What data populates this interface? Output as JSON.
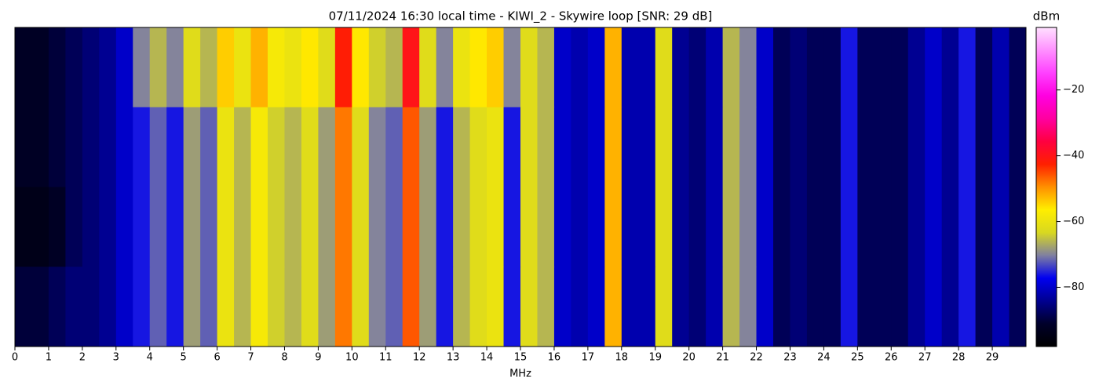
{
  "chart_data": {
    "type": "heatmap",
    "title": "07/11/2024 16:30 local time - KIWI_2 - Skywire loop [SNR: 29 dB]",
    "xlabel": "MHz",
    "xlim": [
      0,
      30
    ],
    "xticks": [
      0,
      1,
      2,
      3,
      4,
      5,
      6,
      7,
      8,
      9,
      10,
      11,
      12,
      13,
      14,
      15,
      16,
      17,
      18,
      19,
      20,
      21,
      22,
      23,
      24,
      25,
      26,
      27,
      28,
      29
    ],
    "colorbar_label": "dBm",
    "clim": [
      -98,
      -1
    ],
    "cticks": [
      {
        "value": -20,
        "label": "−20"
      },
      {
        "value": -40,
        "label": "−40"
      },
      {
        "value": -60,
        "label": "−60"
      },
      {
        "value": -80,
        "label": "−80"
      }
    ],
    "colormap": [
      "#000000",
      "#00002a",
      "#000090",
      "#0000f0",
      "#8080a0",
      "#d8d820",
      "#ffee00",
      "#ff9000",
      "#ff2000",
      "#ff0040",
      "#ff00a0",
      "#ff00e0",
      "#ff40ff",
      "#ff90ff",
      "#ffe0ff"
    ],
    "values": [
      [
        -92,
        -92,
        -90,
        -88,
        -86,
        -84,
        -80,
        -70,
        -66,
        -70,
        -62,
        -66,
        -54,
        -60,
        -52,
        -58,
        -60,
        -56,
        -62,
        -42,
        -56,
        -64,
        -66,
        -40,
        -62,
        -70,
        -60,
        -56,
        -54,
        -70,
        -62,
        -66,
        -80,
        -82,
        -80,
        -52,
        -82,
        -82,
        -62,
        -84,
        -86,
        -82,
        -66,
        -70,
        -80,
        -88,
        -86,
        -88,
        -88,
        -76,
        -88,
        -88,
        -88,
        -84,
        -80,
        -84,
        -76,
        -88,
        -82,
        -88
      ],
      [
        -92,
        -92,
        -90,
        -88,
        -86,
        -84,
        -80,
        -76,
        -72,
        -76,
        -68,
        -72,
        -60,
        -66,
        -58,
        -64,
        -66,
        -62,
        -68,
        -48,
        -62,
        -70,
        -72,
        -46,
        -68,
        -76,
        -66,
        -62,
        -60,
        -76,
        -62,
        -66,
        -80,
        -82,
        -80,
        -52,
        -82,
        -82,
        -62,
        -84,
        -86,
        -82,
        -66,
        -70,
        -80,
        -88,
        -86,
        -88,
        -88,
        -76,
        -88,
        -88,
        -88,
        -84,
        -80,
        -84,
        -76,
        -88,
        -82,
        -88
      ],
      [
        -94,
        -94,
        -92,
        -88,
        -86,
        -84,
        -80,
        -76,
        -72,
        -76,
        -68,
        -72,
        -60,
        -66,
        -58,
        -64,
        -66,
        -62,
        -68,
        -48,
        -62,
        -70,
        -72,
        -46,
        -68,
        -76,
        -66,
        -62,
        -60,
        -76,
        -62,
        -66,
        -80,
        -82,
        -80,
        -52,
        -82,
        -82,
        -62,
        -84,
        -86,
        -82,
        -66,
        -70,
        -80,
        -88,
        -86,
        -88,
        -88,
        -76,
        -88,
        -88,
        -88,
        -84,
        -80,
        -84,
        -76,
        -88,
        -82,
        -88
      ],
      [
        -90,
        -90,
        -88,
        -86,
        -86,
        -84,
        -80,
        -76,
        -72,
        -76,
        -68,
        -72,
        -60,
        -66,
        -58,
        -64,
        -66,
        -62,
        -68,
        -48,
        -62,
        -70,
        -72,
        -46,
        -68,
        -76,
        -66,
        -62,
        -60,
        -76,
        -62,
        -66,
        -80,
        -82,
        -80,
        -52,
        -82,
        -82,
        -62,
        -84,
        -86,
        -82,
        -66,
        -70,
        -80,
        -88,
        -86,
        -88,
        -88,
        -76,
        -88,
        -88,
        -88,
        -84,
        -80,
        -84,
        -76,
        -88,
        -82,
        -88
      ]
    ]
  }
}
